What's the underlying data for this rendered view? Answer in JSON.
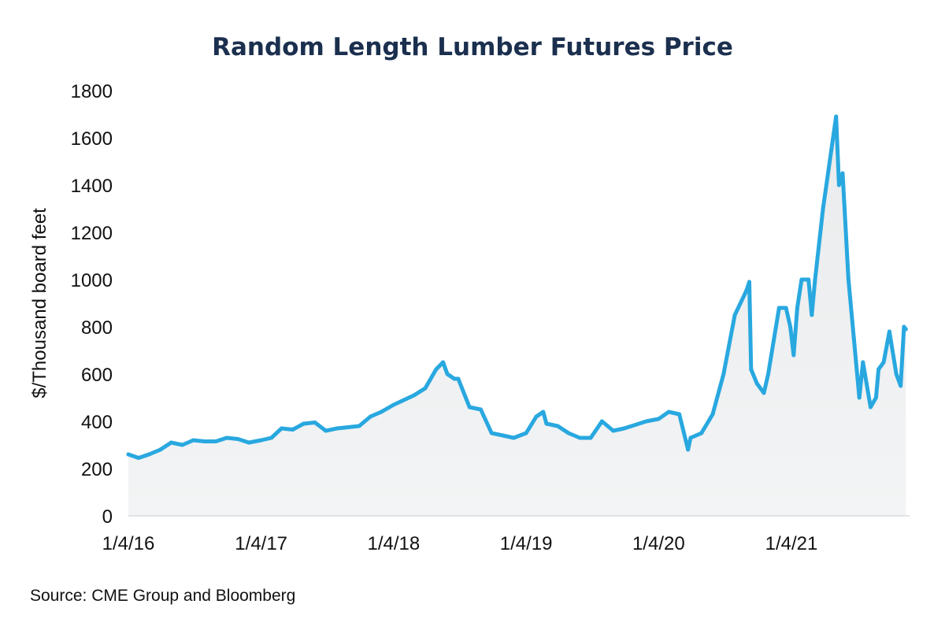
{
  "chart_data": {
    "type": "area",
    "title": "Random Length Lumber Futures Price",
    "ylabel": "$/Thousand board feet",
    "xlabel": "",
    "source": "Source: CME Group and Bloomberg",
    "ylim": [
      0,
      1800
    ],
    "yticks": [
      "0",
      "200",
      "400",
      "600",
      "800",
      "1000",
      "1200",
      "1400",
      "1600",
      "1800"
    ],
    "xticks": [
      {
        "label": "1/4/16",
        "date": "2016-01-04"
      },
      {
        "label": "1/4/17",
        "date": "2017-01-04"
      },
      {
        "label": "1/4/18",
        "date": "2018-01-04"
      },
      {
        "label": "1/4/19",
        "date": "2019-01-04"
      },
      {
        "label": "1/4/20",
        "date": "2020-01-04"
      },
      {
        "label": "1/4/21",
        "date": "2021-01-04"
      }
    ],
    "grid": false,
    "colors": {
      "line": "#29a8e0",
      "fill": "#e9ebec",
      "title": "#1b2f4e"
    },
    "series": [
      {
        "x": [
          "2016-01-04",
          "2016-02-01",
          "2016-03-01",
          "2016-04-01",
          "2016-05-01",
          "2016-06-01",
          "2016-07-01",
          "2016-08-01",
          "2016-09-01",
          "2016-10-01",
          "2016-11-01",
          "2016-12-01",
          "2017-01-04",
          "2017-02-01",
          "2017-03-01",
          "2017-04-01",
          "2017-05-01",
          "2017-06-01",
          "2017-07-01",
          "2017-08-01",
          "2017-09-01",
          "2017-10-01",
          "2017-11-01",
          "2017-12-01",
          "2018-01-04",
          "2018-02-01",
          "2018-03-01",
          "2018-04-01",
          "2018-05-01",
          "2018-05-20",
          "2018-06-01",
          "2018-06-20",
          "2018-07-01",
          "2018-08-01",
          "2018-09-01",
          "2018-10-01",
          "2018-11-01",
          "2018-12-01",
          "2019-01-04",
          "2019-02-01",
          "2019-02-20",
          "2019-03-01",
          "2019-04-01",
          "2019-05-01",
          "2019-06-01",
          "2019-07-01",
          "2019-08-01",
          "2019-09-01",
          "2019-10-01",
          "2019-11-01",
          "2019-12-01",
          "2020-01-04",
          "2020-02-01",
          "2020-03-01",
          "2020-03-25",
          "2020-04-01",
          "2020-05-01",
          "2020-06-01",
          "2020-07-01",
          "2020-08-01",
          "2020-09-01",
          "2020-09-10",
          "2020-09-15",
          "2020-10-01",
          "2020-10-20",
          "2020-11-01",
          "2020-12-01",
          "2020-12-20",
          "2021-01-01",
          "2021-01-10",
          "2021-01-20",
          "2021-02-01",
          "2021-02-20",
          "2021-03-01",
          "2021-03-10",
          "2021-04-01",
          "2021-05-07",
          "2021-05-15",
          "2021-05-25",
          "2021-06-10",
          "2021-06-25",
          "2021-07-10",
          "2021-07-20",
          "2021-08-10",
          "2021-08-25",
          "2021-09-01",
          "2021-09-15",
          "2021-10-01",
          "2021-10-20",
          "2021-11-01",
          "2021-11-10",
          "2021-11-15"
        ],
        "y": [
          260,
          245,
          260,
          280,
          310,
          300,
          320,
          315,
          315,
          330,
          325,
          310,
          320,
          330,
          370,
          365,
          390,
          395,
          360,
          370,
          375,
          380,
          420,
          440,
          470,
          490,
          510,
          540,
          620,
          650,
          600,
          580,
          580,
          460,
          450,
          350,
          340,
          330,
          350,
          420,
          440,
          390,
          380,
          350,
          330,
          330,
          400,
          360,
          370,
          385,
          400,
          410,
          440,
          430,
          280,
          330,
          350,
          430,
          600,
          850,
          950,
          990,
          620,
          560,
          520,
          600,
          880,
          880,
          800,
          680,
          880,
          1000,
          1000,
          850,
          1000,
          1300,
          1690,
          1400,
          1450,
          1000,
          750,
          500,
          650,
          460,
          500,
          620,
          650,
          780,
          600,
          550,
          800,
          790
        ]
      }
    ]
  }
}
